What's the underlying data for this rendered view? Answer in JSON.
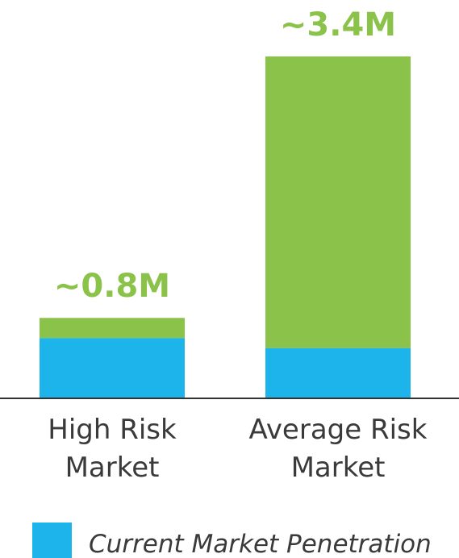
{
  "chart_data": {
    "type": "bar",
    "stacked": true,
    "categories": [
      [
        "High Risk",
        "Market"
      ],
      [
        "Average Risk",
        "Market"
      ]
    ],
    "totals": [
      0.8,
      3.4
    ],
    "total_labels": [
      "~0.8M",
      "~3.4M"
    ],
    "series": [
      {
        "name": "Current Market Penetration",
        "values": [
          0.6,
          0.5
        ],
        "color": "#1cb4ea"
      },
      {
        "values": [
          0.2,
          2.9
        ],
        "color": "#8bc34a"
      }
    ],
    "unit": "M",
    "ylim": [
      0,
      3.4
    ],
    "grid": false,
    "legend": "bottom-left",
    "colors": {
      "total_label": "#8bc34a",
      "axis": "#333333"
    }
  }
}
